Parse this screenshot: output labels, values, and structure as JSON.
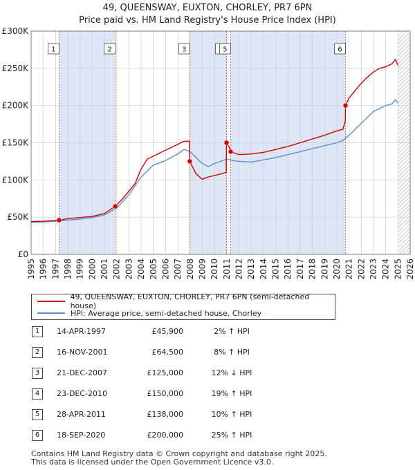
{
  "title": "49, QUEENSWAY, EUXTON, CHORLEY, PR7 6PN",
  "subtitle": "Price paid vs. HM Land Registry's House Price Index (HPI)",
  "legend": {
    "property_label": "49, QUEENSWAY, EUXTON, CHORLEY, PR7 6PN (semi-detached house)",
    "hpi_label": "HPI: Average price, semi-detached house, Chorley"
  },
  "colors": {
    "property": "#cc0000",
    "hpi": "#5b8fd0",
    "shade": "#dde6f5",
    "grid": "#cccccc"
  },
  "sales": [
    {
      "num": "1",
      "date": "14-APR-1997",
      "price": "£45,900",
      "hpi": "2% ↑ HPI"
    },
    {
      "num": "2",
      "date": "16-NOV-2001",
      "price": "£64,500",
      "hpi": "8% ↑ HPI"
    },
    {
      "num": "3",
      "date": "21-DEC-2007",
      "price": "£125,000",
      "hpi": "12% ↓ HPI"
    },
    {
      "num": "4",
      "date": "23-DEC-2010",
      "price": "£150,000",
      "hpi": "19% ↑ HPI"
    },
    {
      "num": "5",
      "date": "28-APR-2011",
      "price": "£138,000",
      "hpi": "10% ↑ HPI"
    },
    {
      "num": "6",
      "date": "18-SEP-2020",
      "price": "£200,000",
      "hpi": "25% ↑ HPI"
    }
  ],
  "footer": {
    "line1": "Contains HM Land Registry data © Crown copyright and database right 2025.",
    "line2": "This data is licensed under the Open Government Licence v3.0."
  },
  "chart_data": {
    "type": "line",
    "title": "49, QUEENSWAY, EUXTON, CHORLEY, PR7 6PN",
    "subtitle": "Price paid vs. HM Land Registry's House Price Index (HPI)",
    "xlim": [
      1995,
      2026
    ],
    "ylim": [
      0,
      300000
    ],
    "x_ticks": [
      1995,
      1996,
      1997,
      1998,
      1999,
      2000,
      2001,
      2002,
      2003,
      2004,
      2005,
      2006,
      2007,
      2008,
      2009,
      2010,
      2011,
      2012,
      2013,
      2014,
      2015,
      2016,
      2017,
      2018,
      2019,
      2020,
      2021,
      2022,
      2023,
      2024,
      2025,
      2026
    ],
    "y_ticks": [
      {
        "value": 0,
        "label": "£0"
      },
      {
        "value": 50000,
        "label": "£50K"
      },
      {
        "value": 100000,
        "label": "£100K"
      },
      {
        "value": 150000,
        "label": "£150K"
      },
      {
        "value": 200000,
        "label": "£200K"
      },
      {
        "value": 250000,
        "label": "£250K"
      },
      {
        "value": 300000,
        "label": "£300K"
      }
    ],
    "grid": true,
    "shaded_periods": [
      [
        1997.29,
        2001.88
      ],
      [
        2007.97,
        2010.98
      ],
      [
        2011.32,
        2020.71
      ]
    ],
    "future_hatch_from": 2025.0,
    "sale_markers": [
      {
        "label": "1",
        "x": 1997.29,
        "y": 45900
      },
      {
        "label": "2",
        "x": 2001.88,
        "y": 64500
      },
      {
        "label": "3",
        "x": 2007.97,
        "y": 125000
      },
      {
        "label": "4",
        "x": 2010.98,
        "y": 150000
      },
      {
        "label": "5",
        "x": 2011.32,
        "y": 138000
      },
      {
        "label": "6",
        "x": 2020.71,
        "y": 200000
      }
    ],
    "series": [
      {
        "name": "49, QUEENSWAY, EUXTON, CHORLEY, PR7 6PN (semi-detached house)",
        "color": "#cc0000",
        "x": [
          1995.0,
          1996.0,
          1997.0,
          1997.29,
          1998.0,
          1999.0,
          2000.0,
          2001.0,
          2001.88,
          2002.5,
          2003.0,
          2003.5,
          2004.0,
          2004.5,
          2005.0,
          2006.0,
          2007.0,
          2007.5,
          2007.95,
          2007.97,
          2008.5,
          2009.0,
          2009.5,
          2010.0,
          2010.5,
          2010.95,
          2010.98,
          2011.2,
          2011.32,
          2012.0,
          2013.0,
          2014.0,
          2015.0,
          2016.0,
          2017.0,
          2018.0,
          2019.0,
          2020.0,
          2020.5,
          2020.7,
          2020.71,
          2021.0,
          2021.5,
          2022.0,
          2022.5,
          2023.0,
          2023.5,
          2024.0,
          2024.5,
          2024.8,
          2025.0
        ],
        "values": [
          44000,
          44500,
          45500,
          45900,
          48000,
          49500,
          51000,
          55000,
          64500,
          75000,
          85000,
          95000,
          115000,
          128000,
          132000,
          140000,
          148000,
          152000,
          152000,
          125000,
          108000,
          101000,
          104000,
          106000,
          108000,
          110000,
          150000,
          144000,
          138000,
          134000,
          135000,
          137000,
          141000,
          145000,
          150000,
          155000,
          160000,
          166000,
          168000,
          180000,
          200000,
          210000,
          220000,
          230000,
          238000,
          245000,
          250000,
          252000,
          256000,
          262000,
          254000
        ]
      },
      {
        "name": "HPI: Average price, semi-detached house, Chorley",
        "color": "#5b8fd0",
        "x": [
          1995.0,
          1996.0,
          1997.0,
          1998.0,
          1999.0,
          2000.0,
          2001.0,
          2002.0,
          2003.0,
          2004.0,
          2005.0,
          2006.0,
          2007.0,
          2007.5,
          2008.0,
          2008.5,
          2009.0,
          2009.5,
          2010.0,
          2010.5,
          2011.0,
          2011.5,
          2012.0,
          2013.0,
          2014.0,
          2015.0,
          2016.0,
          2017.0,
          2018.0,
          2019.0,
          2020.0,
          2020.5,
          2021.0,
          2021.5,
          2022.0,
          2022.5,
          2023.0,
          2023.5,
          2024.0,
          2024.5,
          2024.8,
          2025.0
        ],
        "values": [
          43000,
          43500,
          44500,
          46000,
          47500,
          49500,
          53000,
          62000,
          80000,
          104000,
          120000,
          126000,
          135000,
          141000,
          138000,
          130000,
          122000,
          118000,
          122000,
          125000,
          128000,
          126000,
          125000,
          124000,
          127000,
          130000,
          134000,
          138000,
          142000,
          146000,
          150000,
          153000,
          160000,
          168000,
          176000,
          184000,
          192000,
          196000,
          200000,
          202000,
          208000,
          203000
        ]
      }
    ]
  }
}
